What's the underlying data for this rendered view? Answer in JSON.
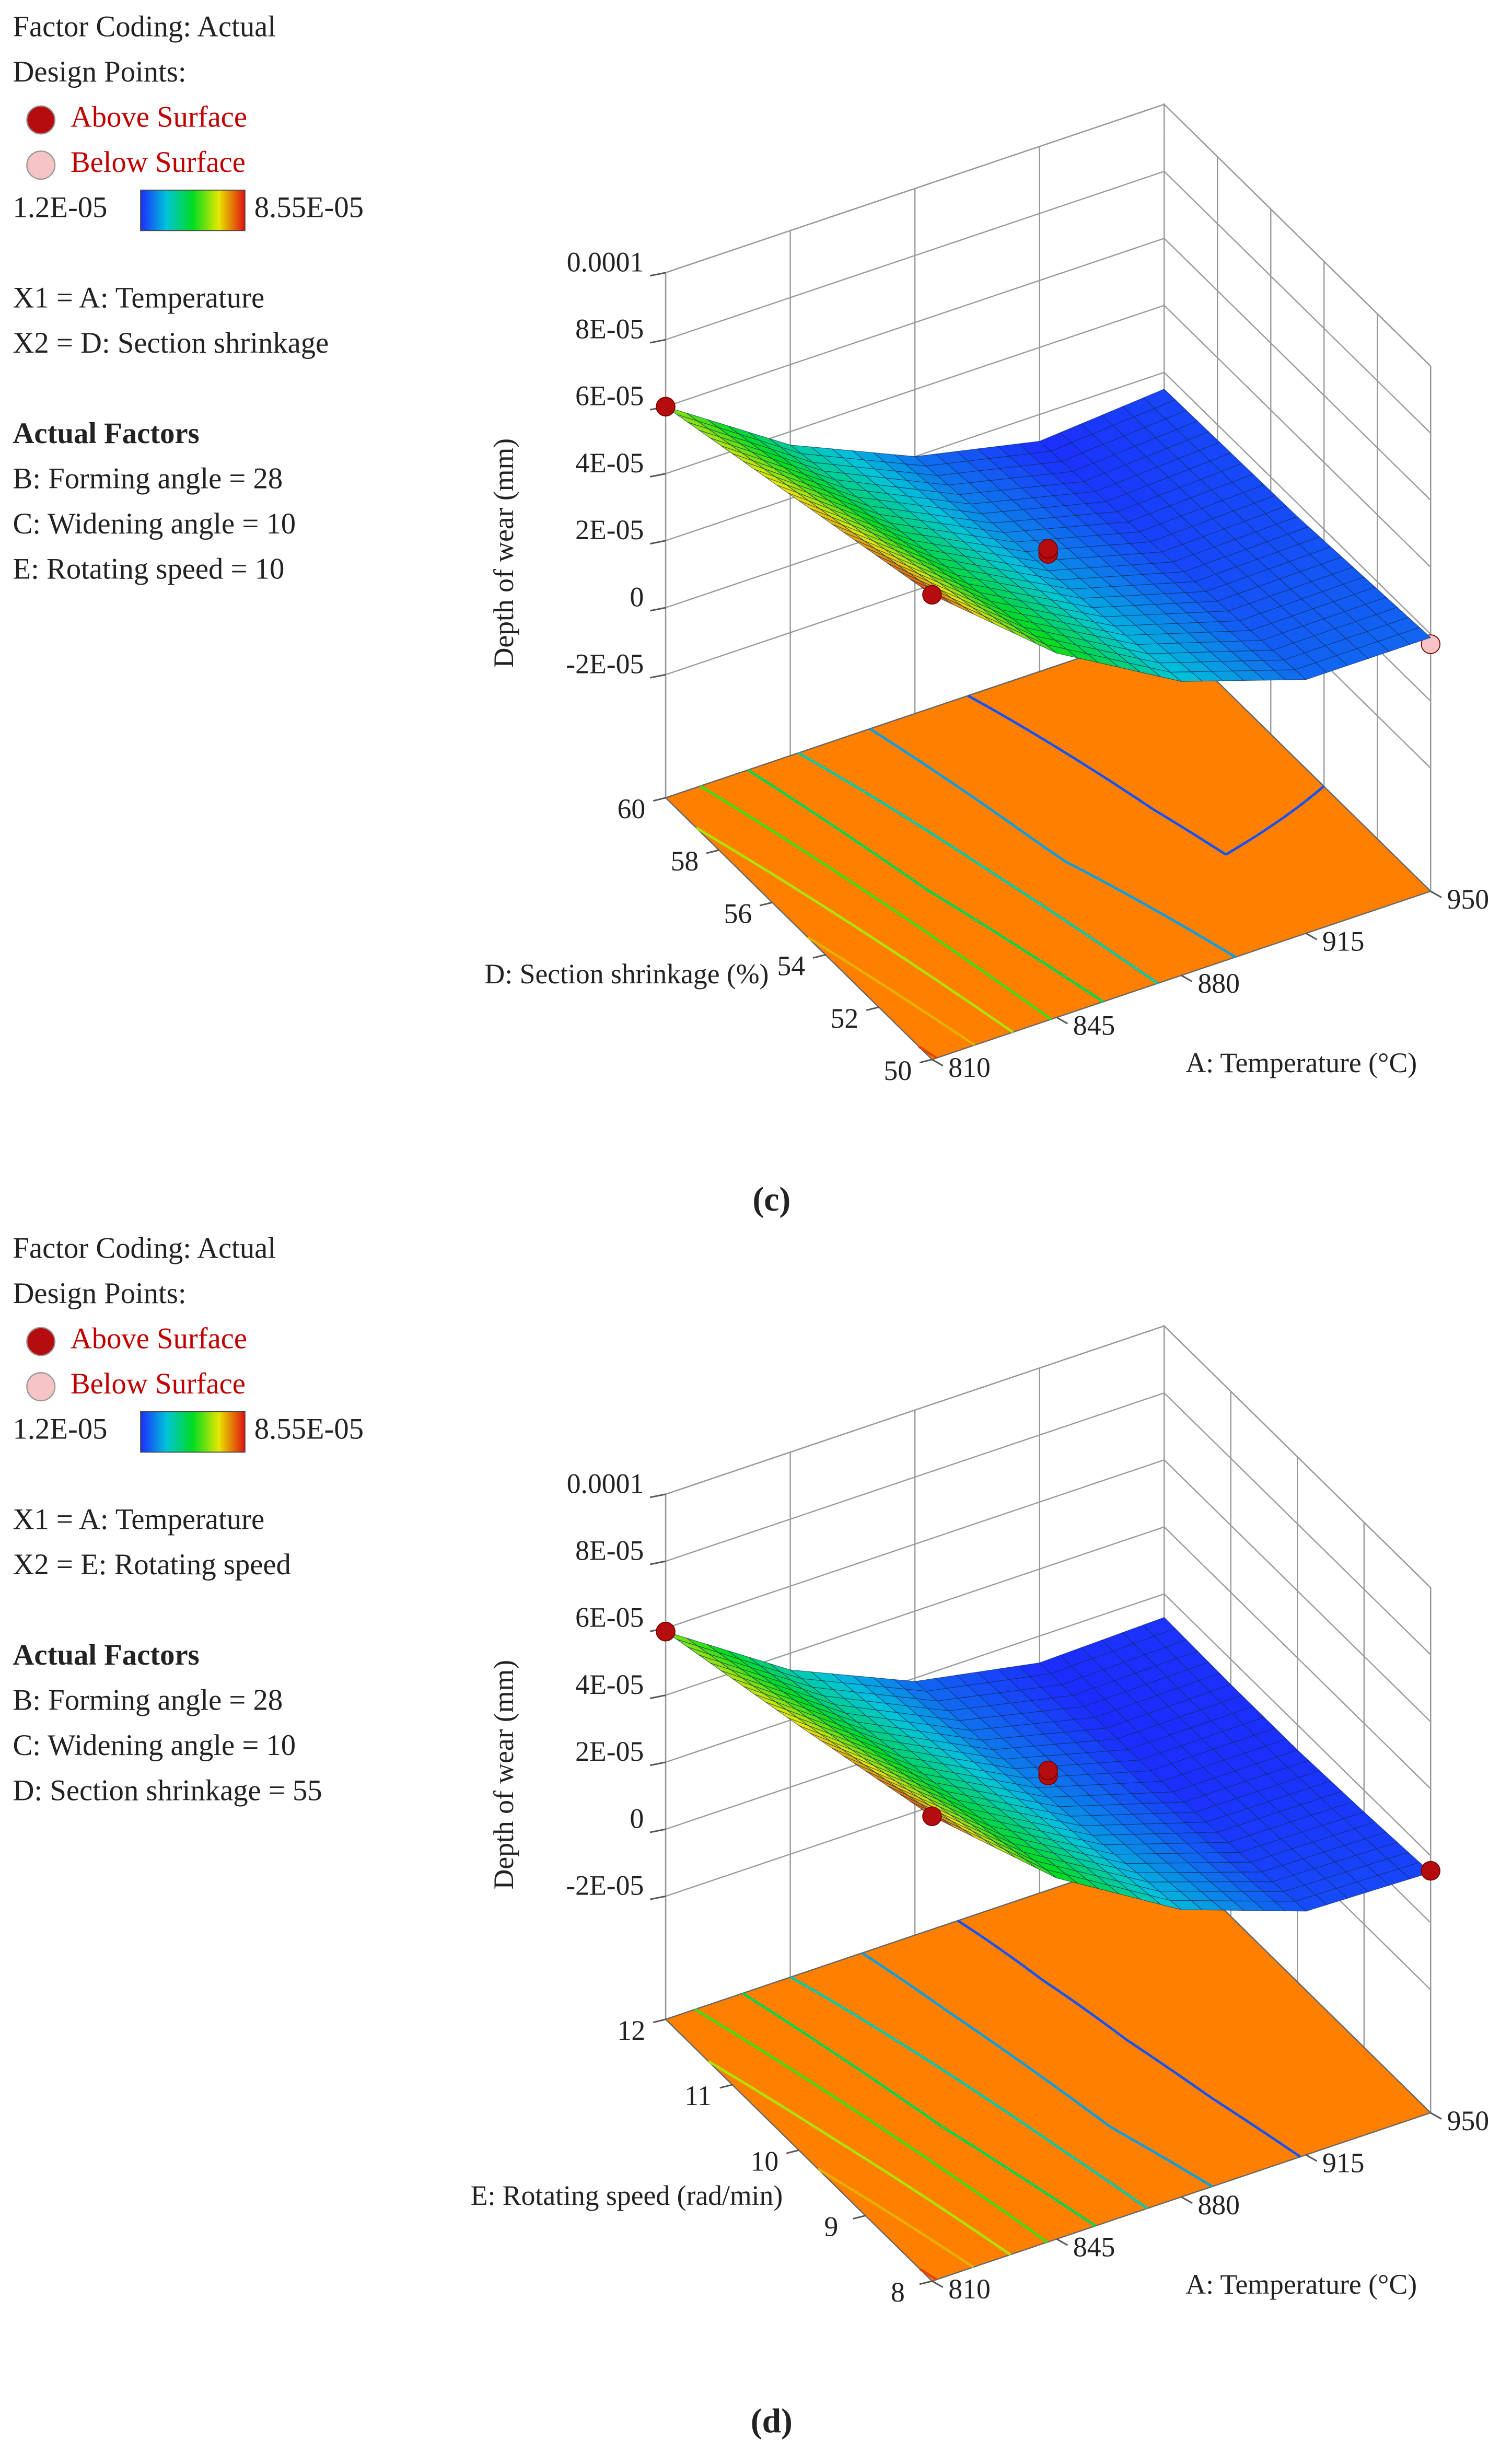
{
  "chart_data": [
    {
      "type": "surface3d",
      "legend_title": "Factor Coding: Actual",
      "points_title": "Design Points:",
      "series": [
        {
          "name": "Above Surface",
          "color": "#b50d0d"
        },
        {
          "name": "Below Surface",
          "color": "#f6c4c4"
        }
      ],
      "color_range": [
        {
          "value": 1.2e-05,
          "label": "1.2E-05"
        },
        {
          "value": 8.55e-05,
          "label": "8.55E-05"
        }
      ],
      "colormap": [
        "#1c2cff",
        "#00c4d8",
        "#00dc20",
        "#e6e600",
        "#e01010"
      ],
      "factors": [
        "X1 = A: Temperature",
        "X2 = D: Section shrinkage"
      ],
      "actual_title": "Actual Factors",
      "actual_factors": [
        "B: Forming angle = 28",
        "C: Widening angle = 10",
        "E: Rotating speed = 10"
      ],
      "zlabel": "Depth of wear (mm)",
      "xlabel": "A: Temperature (°C)",
      "ylabel": "D: Section shrinkage (%)",
      "xlim": [
        810,
        950
      ],
      "xticks": [
        810,
        845,
        880,
        915,
        950
      ],
      "ylim": [
        50,
        60
      ],
      "yticks": [
        50,
        52,
        54,
        56,
        58,
        60
      ],
      "zlim": [
        -2e-05,
        0.0001
      ],
      "zticks": [
        {
          "value": -2e-05,
          "label": "-2E-05"
        },
        0,
        {
          "value": 2e-05,
          "label": "2E-05"
        },
        {
          "value": 4e-05,
          "label": "4E-05"
        },
        {
          "value": 6e-05,
          "label": "6E-05"
        },
        {
          "value": 8e-05,
          "label": "8E-05"
        },
        0.0001
      ],
      "x": [
        810,
        845,
        880,
        915,
        950
      ],
      "y": [
        50,
        52.5,
        55,
        57.5,
        60
      ],
      "z": [
        [
          8.2e-05,
          5.2e-05,
          3.1e-05,
          1.9e-05,
          1.9e-05
        ],
        [
          7.65e-05,
          4.8e-05,
          2.8e-05,
          1.7e-05,
          1.75e-05
        ],
        [
          7.1e-05,
          4.4e-05,
          2.5e-05,
          1.5e-05,
          1.6e-05
        ],
        [
          6.55e-05,
          4e-05,
          2.25e-05,
          1.35e-05,
          1.55e-05
        ],
        [
          6e-05,
          3.6e-05,
          2e-05,
          1.2e-05,
          1.5e-05
        ]
      ],
      "points_above": {
        "x": [
          810,
          810,
          880,
          880
        ],
        "y": [
          60,
          50,
          55,
          55
        ],
        "z": [
          6e-05,
          8.2e-05,
          3e-05,
          3.15e-05
        ]
      },
      "points_below": {
        "x": [
          950
        ],
        "y": [
          50
        ],
        "z": [
          1.7e-05
        ]
      },
      "floor_color": "#ff8000",
      "grid": true,
      "caption": "(c)"
    },
    {
      "type": "surface3d",
      "legend_title": "Factor Coding: Actual",
      "points_title": "Design Points:",
      "series": [
        {
          "name": "Above Surface",
          "color": "#b50d0d"
        },
        {
          "name": "Below Surface",
          "color": "#f6c4c4"
        }
      ],
      "color_range": [
        {
          "value": 1.2e-05,
          "label": "1.2E-05"
        },
        {
          "value": 8.55e-05,
          "label": "8.55E-05"
        }
      ],
      "colormap": [
        "#1c2cff",
        "#00c4d8",
        "#00dc20",
        "#e6e600",
        "#e01010"
      ],
      "factors": [
        "X1 = A: Temperature",
        "X2 = E: Rotating speed"
      ],
      "actual_title": "Actual Factors",
      "actual_factors": [
        "B: Forming angle = 28",
        "C: Widening angle = 10",
        "D: Section shrinkage = 55"
      ],
      "zlabel": "Depth of wear (mm)",
      "xlabel": "A: Temperature (°C)",
      "ylabel": "E: Rotating speed (rad/min)",
      "xlim": [
        810,
        950
      ],
      "xticks": [
        810,
        845,
        880,
        915,
        950
      ],
      "ylim": [
        8,
        12
      ],
      "yticks": [
        8,
        9,
        10,
        11,
        12
      ],
      "zlim": [
        -2e-05,
        0.0001
      ],
      "zticks": [
        {
          "value": -2e-05,
          "label": "-2E-05"
        },
        0,
        {
          "value": 2e-05,
          "label": "2E-05"
        },
        {
          "value": 4e-05,
          "label": "4E-05"
        },
        {
          "value": 6e-05,
          "label": "6E-05"
        },
        {
          "value": 8e-05,
          "label": "8E-05"
        },
        0.0001
      ],
      "x": [
        810,
        845,
        880,
        915,
        950
      ],
      "y": [
        8,
        9,
        10,
        11,
        12
      ],
      "z": [
        [
          8.2e-05,
          5.1e-05,
          2.9e-05,
          1.6e-05,
          1.5e-05
        ],
        [
          7.6e-05,
          4.7e-05,
          2.6e-05,
          1.4e-05,
          1.35e-05
        ],
        [
          7e-05,
          4.3e-05,
          2.35e-05,
          1.25e-05,
          1.25e-05
        ],
        [
          6.45e-05,
          3.9e-05,
          2.1e-05,
          1.2e-05,
          1.25e-05
        ],
        [
          5.9e-05,
          3.5e-05,
          1.9e-05,
          1.2e-05,
          1.3e-05
        ]
      ],
      "points_above": {
        "x": [
          810,
          810,
          880,
          880,
          950
        ],
        "y": [
          12,
          8,
          10,
          10,
          8
        ],
        "z": [
          5.9e-05,
          8.2e-05,
          3e-05,
          3.15e-05,
          1.55e-05
        ]
      },
      "points_below": {
        "x": [],
        "y": [],
        "z": []
      },
      "floor_color": "#ff8000",
      "grid": true,
      "caption": "(d)"
    }
  ]
}
